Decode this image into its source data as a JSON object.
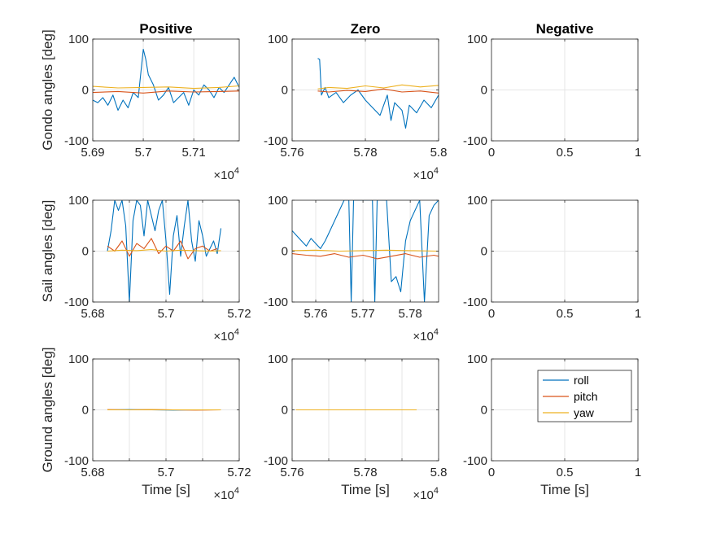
{
  "colors": {
    "roll": "#0072BD",
    "pitch": "#D95319",
    "yaw": "#EDB120"
  },
  "legend": {
    "entries": [
      "roll",
      "pitch",
      "yaw"
    ],
    "location": "top-right",
    "panel": 8
  },
  "chart_data": [
    {
      "type": "line",
      "title": "Positive",
      "xlabel": "",
      "ylabel": "Gondo angles [deg]",
      "xlim": [
        56900,
        57190
      ],
      "ylim": [
        -100,
        100
      ],
      "xticks": [
        56900,
        57000,
        57100
      ],
      "xtick_labels": [
        "5.69",
        "5.7",
        "5.71"
      ],
      "yticks": [
        -100,
        0,
        100
      ],
      "ytick_labels": [
        "-100",
        "0",
        "100"
      ],
      "exponent_label": "×10^4",
      "series": [
        {
          "name": "roll",
          "x": [
            56900,
            56910,
            56920,
            56930,
            56940,
            56950,
            56960,
            56970,
            56980,
            56990,
            57000,
            57005,
            57010,
            57020,
            57030,
            57040,
            57050,
            57060,
            57070,
            57080,
            57090,
            57100,
            57110,
            57120,
            57130,
            57140,
            57150,
            57160,
            57170,
            57180,
            57190
          ],
          "y": [
            -20,
            -25,
            -15,
            -30,
            -10,
            -40,
            -20,
            -35,
            -5,
            -15,
            80,
            60,
            30,
            10,
            -20,
            -10,
            5,
            -25,
            -15,
            -5,
            -30,
            0,
            -10,
            10,
            0,
            -15,
            5,
            -5,
            10,
            25,
            5
          ]
        },
        {
          "name": "pitch",
          "x": [
            56900,
            56950,
            57000,
            57050,
            57100,
            57150,
            57190
          ],
          "y": [
            -5,
            -3,
            -6,
            -2,
            -4,
            -3,
            -2
          ]
        },
        {
          "name": "yaw",
          "x": [
            56900,
            56950,
            57000,
            57050,
            57100,
            57150,
            57190
          ],
          "y": [
            7,
            4,
            5,
            6,
            3,
            5,
            8
          ]
        }
      ]
    },
    {
      "type": "line",
      "title": "Zero",
      "xlabel": "",
      "ylabel": "",
      "xlim": [
        57600,
        58000
      ],
      "ylim": [
        -100,
        100
      ],
      "xticks": [
        57600,
        57800,
        58000
      ],
      "xtick_labels": [
        "5.76",
        "5.78",
        "5.8"
      ],
      "yticks": [
        -100,
        0,
        100
      ],
      "ytick_labels": [
        "-100",
        "0",
        "100"
      ],
      "exponent_label": "×10^4",
      "series": [
        {
          "name": "roll",
          "x": [
            57670,
            57675,
            57680,
            57690,
            57700,
            57720,
            57740,
            57760,
            57780,
            57800,
            57820,
            57840,
            57860,
            57870,
            57880,
            57900,
            57910,
            57920,
            57940,
            57960,
            57980,
            58000
          ],
          "y": [
            62,
            60,
            -10,
            5,
            -15,
            -5,
            -25,
            -10,
            0,
            -20,
            -35,
            -50,
            -10,
            -60,
            -25,
            -40,
            -75,
            -30,
            -45,
            -20,
            -35,
            -10
          ]
        },
        {
          "name": "pitch",
          "x": [
            57670,
            57700,
            57750,
            57800,
            57850,
            57900,
            57950,
            58000
          ],
          "y": [
            -2,
            -4,
            -1,
            -3,
            2,
            -4,
            -2,
            -6
          ]
        },
        {
          "name": "yaw",
          "x": [
            57670,
            57700,
            57750,
            57800,
            57850,
            57900,
            57950,
            58000
          ],
          "y": [
            2,
            5,
            3,
            8,
            4,
            10,
            6,
            9
          ]
        }
      ]
    },
    {
      "type": "line",
      "title": "Negative",
      "xlabel": "",
      "ylabel": "",
      "xlim": [
        0,
        1
      ],
      "ylim": [
        -100,
        100
      ],
      "xticks": [
        0,
        0.5,
        1
      ],
      "xtick_labels": [
        "0",
        "0.5",
        "1"
      ],
      "yticks": [
        -100,
        0,
        100
      ],
      "ytick_labels": [
        "-100",
        "0",
        "100"
      ],
      "series": []
    },
    {
      "type": "line",
      "title": "",
      "xlabel": "",
      "ylabel": "Sail angles [deg]",
      "xlim": [
        56800,
        57200
      ],
      "ylim": [
        -100,
        100
      ],
      "xticks": [
        56800,
        56900,
        57000,
        57100,
        57200
      ],
      "xtick_labels": [
        "5.68",
        "",
        "5.7",
        "",
        "5.72"
      ],
      "yticks": [
        -100,
        0,
        100
      ],
      "ytick_labels": [
        "-100",
        "0",
        "100"
      ],
      "exponent_label": "×10^4",
      "series": [
        {
          "name": "roll",
          "x": [
            56840,
            56850,
            56860,
            56870,
            56880,
            56890,
            56900,
            56910,
            56920,
            56930,
            56940,
            56950,
            56960,
            56970,
            56980,
            56990,
            57000,
            57010,
            57020,
            57030,
            57040,
            57050,
            57060,
            57070,
            57080,
            57090,
            57100,
            57110,
            57120,
            57130,
            57140,
            57150
          ],
          "y": [
            0,
            40,
            100,
            80,
            100,
            50,
            -100,
            60,
            100,
            90,
            30,
            100,
            70,
            40,
            80,
            100,
            20,
            -85,
            30,
            70,
            -10,
            50,
            100,
            20,
            -20,
            60,
            30,
            -10,
            5,
            20,
            -5,
            45
          ]
        },
        {
          "name": "pitch",
          "x": [
            56840,
            56860,
            56880,
            56900,
            56920,
            56940,
            56960,
            56980,
            57000,
            57020,
            57040,
            57060,
            57080,
            57100,
            57120,
            57140
          ],
          "y": [
            10,
            0,
            20,
            -10,
            15,
            5,
            25,
            -5,
            10,
            0,
            20,
            -15,
            5,
            10,
            0,
            5
          ]
        },
        {
          "name": "yaw",
          "x": [
            56840,
            56880,
            56920,
            56960,
            57000,
            57040,
            57080,
            57120,
            57150
          ],
          "y": [
            0,
            2,
            1,
            3,
            0,
            2,
            1,
            0,
            1
          ]
        }
      ]
    },
    {
      "type": "line",
      "title": "",
      "xlabel": "",
      "ylabel": "",
      "xlim": [
        57550,
        57860
      ],
      "ylim": [
        -100,
        100
      ],
      "xticks": [
        57600,
        57700,
        57800
      ],
      "xtick_labels": [
        "5.76",
        "5.77",
        "5.78"
      ],
      "yticks": [
        -100,
        0,
        100
      ],
      "ytick_labels": [
        "-100",
        "0",
        "100"
      ],
      "exponent_label": "×10^4",
      "series": [
        {
          "name": "roll",
          "x": [
            57550,
            57560,
            57570,
            57580,
            57590,
            57600,
            57610,
            57620,
            57630,
            57640,
            57650,
            57660,
            57670,
            57675,
            57680,
            57690,
            57700,
            57710,
            57720,
            57725,
            57730,
            57740,
            57750,
            57760,
            57770,
            57780,
            57790,
            57800,
            57810,
            57820,
            57830,
            57840,
            57850,
            57860
          ],
          "y": [
            40,
            30,
            20,
            10,
            25,
            15,
            5,
            20,
            40,
            60,
            80,
            100,
            100,
            -100,
            100,
            100,
            100,
            100,
            100,
            -100,
            100,
            100,
            100,
            -60,
            -50,
            -80,
            20,
            60,
            80,
            100,
            -100,
            70,
            90,
            100
          ]
        },
        {
          "name": "pitch",
          "x": [
            57550,
            57580,
            57610,
            57640,
            57670,
            57700,
            57730,
            57760,
            57790,
            57820,
            57850,
            57860
          ],
          "y": [
            -5,
            -8,
            -10,
            -5,
            -12,
            -8,
            -15,
            -10,
            -5,
            -12,
            -8,
            -10
          ]
        },
        {
          "name": "yaw",
          "x": [
            57550,
            57600,
            57650,
            57700,
            57750,
            57800,
            57860
          ],
          "y": [
            1,
            2,
            0,
            1,
            2,
            1,
            0
          ]
        }
      ]
    },
    {
      "type": "line",
      "title": "",
      "xlabel": "",
      "ylabel": "",
      "xlim": [
        0,
        1
      ],
      "ylim": [
        -100,
        100
      ],
      "xticks": [
        0,
        0.5,
        1
      ],
      "xtick_labels": [
        "0",
        "0.5",
        "1"
      ],
      "yticks": [
        -100,
        0,
        100
      ],
      "ytick_labels": [
        "-100",
        "0",
        "100"
      ],
      "series": []
    },
    {
      "type": "line",
      "title": "",
      "xlabel": "Time [s]",
      "ylabel": "Ground angles [deg]",
      "xlim": [
        56800,
        57200
      ],
      "ylim": [
        -100,
        100
      ],
      "xticks": [
        56800,
        56900,
        57000,
        57100,
        57200
      ],
      "xtick_labels": [
        "5.68",
        "",
        "5.7",
        "",
        "5.72"
      ],
      "yticks": [
        -100,
        0,
        100
      ],
      "ytick_labels": [
        "-100",
        "0",
        "100"
      ],
      "exponent_label": "×10^4",
      "series": [
        {
          "name": "roll",
          "x": [
            56840,
            56900,
            56960,
            57020,
            57080,
            57150
          ],
          "y": [
            0,
            0.5,
            0,
            -0.5,
            0,
            0
          ]
        },
        {
          "name": "pitch",
          "x": [
            56840,
            56900,
            56960,
            57020,
            57080,
            57150
          ],
          "y": [
            0.5,
            0,
            0.5,
            0,
            -0.5,
            0
          ]
        },
        {
          "name": "yaw",
          "x": [
            56840,
            56900,
            56960,
            57020,
            57080,
            57150
          ],
          "y": [
            0,
            0,
            0.5,
            0,
            0,
            0
          ]
        }
      ]
    },
    {
      "type": "line",
      "title": "",
      "xlabel": "Time [s]",
      "ylabel": "",
      "xlim": [
        57600,
        58000
      ],
      "ylim": [
        -100,
        100
      ],
      "xticks": [
        57600,
        57700,
        57800,
        57900,
        58000
      ],
      "xtick_labels": [
        "5.76",
        "",
        "5.78",
        "",
        "5.8"
      ],
      "yticks": [
        -100,
        0,
        100
      ],
      "ytick_labels": [
        "-100",
        "0",
        "100"
      ],
      "exponent_label": "×10^4",
      "series": [
        {
          "name": "roll",
          "x": [
            57610,
            57700,
            57800,
            57880,
            57940
          ],
          "y": [
            0,
            0,
            0,
            0,
            0
          ]
        },
        {
          "name": "pitch",
          "x": [
            57610,
            57700,
            57800,
            57880,
            57940
          ],
          "y": [
            0,
            0,
            0,
            0,
            0
          ]
        },
        {
          "name": "yaw",
          "x": [
            57610,
            57700,
            57800,
            57880,
            57940
          ],
          "y": [
            0,
            0,
            0,
            0,
            0
          ]
        }
      ]
    },
    {
      "type": "line",
      "title": "",
      "xlabel": "Time [s]",
      "ylabel": "",
      "xlim": [
        0,
        1
      ],
      "ylim": [
        -100,
        100
      ],
      "xticks": [
        0,
        0.5,
        1
      ],
      "xtick_labels": [
        "0",
        "0.5",
        "1"
      ],
      "yticks": [
        -100,
        0,
        100
      ],
      "ytick_labels": [
        "-100",
        "0",
        "100"
      ],
      "series": []
    }
  ]
}
